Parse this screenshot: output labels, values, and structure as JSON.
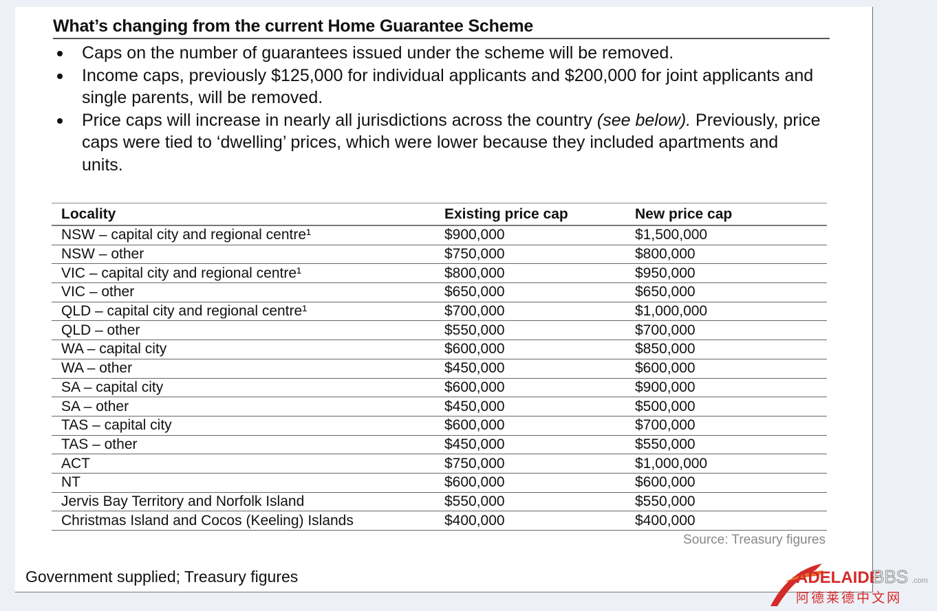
{
  "heading": "What’s changing from the current Home Guarantee Scheme",
  "bullets": [
    "Caps on the number of guarantees issued under the scheme will be removed.",
    "Income caps, previously $125,000 for individual applicants and $200,000 for joint applicants and single parents, will be removed.",
    "Price caps will increase in nearly all jurisdictions across the country",
    " (see below).",
    " Previously, price caps were tied to ‘dwelling’ prices, which were lower because they included apartments and units."
  ],
  "table": {
    "headers": [
      "Locality",
      "Existing price cap",
      "New price cap"
    ],
    "rows": [
      [
        "NSW – capital city and regional centre¹",
        "$900,000",
        "$1,500,000"
      ],
      [
        "NSW – other",
        "$750,000",
        "$800,000"
      ],
      [
        "VIC – capital city and regional centre¹",
        "$800,000",
        "$950,000"
      ],
      [
        "VIC – other",
        "$650,000",
        "$650,000"
      ],
      [
        "QLD – capital city and regional centre¹",
        "$700,000",
        "$1,000,000"
      ],
      [
        "QLD – other",
        "$550,000",
        "$700,000"
      ],
      [
        "WA – capital city",
        "$600,000",
        "$850,000"
      ],
      [
        "WA – other",
        "$450,000",
        "$600,000"
      ],
      [
        "SA – capital city",
        "$600,000",
        "$900,000"
      ],
      [
        "SA – other",
        "$450,000",
        "$500,000"
      ],
      [
        "TAS – capital city",
        "$600,000",
        "$700,000"
      ],
      [
        "TAS – other",
        "$450,000",
        "$550,000"
      ],
      [
        "ACT",
        "$750,000",
        "$1,000,000"
      ],
      [
        "NT",
        "$600,000",
        "$600,000"
      ],
      [
        "Jervis Bay Territory and Norfolk Island",
        "$550,000",
        "$550,000"
      ],
      [
        "Christmas Island and Cocos (Keeling) Islands",
        "$400,000",
        "$400,000"
      ]
    ]
  },
  "source": "Source: Treasury figures",
  "caption": "Government supplied; Treasury figures",
  "watermark": {
    "brand": "ADELAIDE",
    "brand2": "BBS",
    ".com": ".com",
    "cn": "阿德莱德中文网"
  }
}
